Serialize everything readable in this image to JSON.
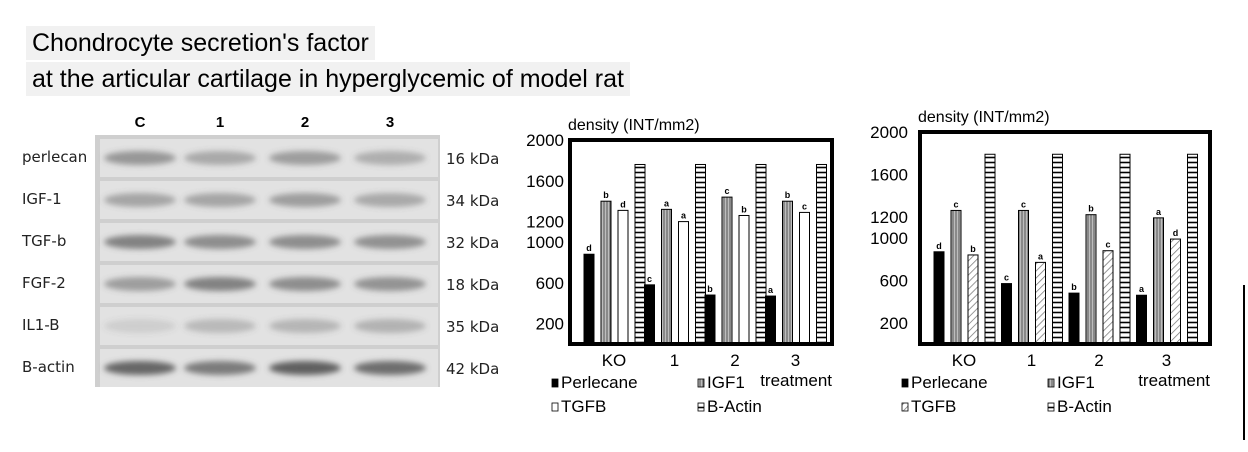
{
  "header": {
    "title_line1": "Chondrocyte secretion's factor",
    "title_line2": "at the articular cartilage in hyperglycemic of model rat"
  },
  "blot": {
    "lanes": [
      "C",
      "1",
      "2",
      "3"
    ],
    "rows": [
      {
        "label": "perlecan",
        "kda": "16 kDa",
        "intensity": [
          0.55,
          0.42,
          0.5,
          0.38
        ]
      },
      {
        "label": "IGF-1",
        "kda": "34 kDa",
        "intensity": [
          0.45,
          0.45,
          0.5,
          0.42
        ]
      },
      {
        "label": "TGF-b",
        "kda": "32 kDa",
        "intensity": [
          0.7,
          0.62,
          0.62,
          0.6
        ]
      },
      {
        "label": "FGF-2",
        "kda": "18 kDa",
        "intensity": [
          0.5,
          0.7,
          0.62,
          0.58
        ]
      },
      {
        "label": "IL1-B",
        "kda": "35 kDa",
        "intensity": [
          0.15,
          0.3,
          0.32,
          0.35
        ]
      },
      {
        "label": "B-actin",
        "kda": "42 kDa",
        "intensity": [
          0.9,
          0.75,
          0.95,
          0.85
        ]
      }
    ],
    "colors": {
      "background": "#d6d6d6",
      "band": "#5a5a5a",
      "row_bg": "#e2e2e2"
    }
  },
  "chart_data": [
    {
      "type": "bar",
      "ylabel": "density (INT/mm2)",
      "xlabel": "treatment",
      "categories": [
        "KO",
        "1",
        "2",
        "3"
      ],
      "yticks": [
        200,
        600,
        1000,
        1200,
        1600,
        2000
      ],
      "ylim": [
        0,
        2000
      ],
      "series": [
        {
          "name": "Perlecane",
          "pattern": "solid-black",
          "values": [
            880,
            580,
            480,
            470
          ],
          "letters": [
            "d",
            "c",
            "b",
            "a"
          ]
        },
        {
          "name": "IGF1",
          "pattern": "vertical-lines",
          "values": [
            1400,
            1320,
            1440,
            1400
          ],
          "letters": [
            "b",
            "a",
            "c",
            "b"
          ]
        },
        {
          "name": "TGFB",
          "pattern": "white",
          "values": [
            1310,
            1200,
            1260,
            1290
          ],
          "letters": [
            "d",
            "a",
            "b",
            "c"
          ]
        },
        {
          "name": "B-Actin",
          "pattern": "horizontal-lines",
          "values": [
            1760,
            1760,
            1760,
            1760
          ],
          "letters": [
            "",
            "",
            "",
            ""
          ]
        }
      ],
      "legend": "bottom",
      "grid": false
    },
    {
      "type": "bar",
      "ylabel": "density (INT/mm2)",
      "xlabel": "treatment",
      "categories": [
        "KO",
        "1",
        "2",
        "3"
      ],
      "yticks": [
        200,
        600,
        1000,
        1200,
        1600,
        2000
      ],
      "ylim": [
        0,
        2000
      ],
      "series": [
        {
          "name": "Perlecane",
          "pattern": "solid-black",
          "values": [
            870,
            570,
            480,
            460
          ],
          "letters": [
            "d",
            "c",
            "b",
            "a"
          ]
        },
        {
          "name": "IGF1",
          "pattern": "vertical-lines",
          "values": [
            1260,
            1260,
            1220,
            1190
          ],
          "letters": [
            "c",
            "c",
            "b",
            "a"
          ]
        },
        {
          "name": "TGFB",
          "pattern": "diagonal-lines",
          "values": [
            840,
            770,
            880,
            990
          ],
          "letters": [
            "b",
            "a",
            "c",
            "d"
          ]
        },
        {
          "name": "B-Actin",
          "pattern": "horizontal-lines",
          "values": [
            1790,
            1790,
            1790,
            1790
          ],
          "letters": [
            "",
            "",
            "",
            ""
          ]
        }
      ],
      "legend": "bottom",
      "grid": false
    }
  ]
}
